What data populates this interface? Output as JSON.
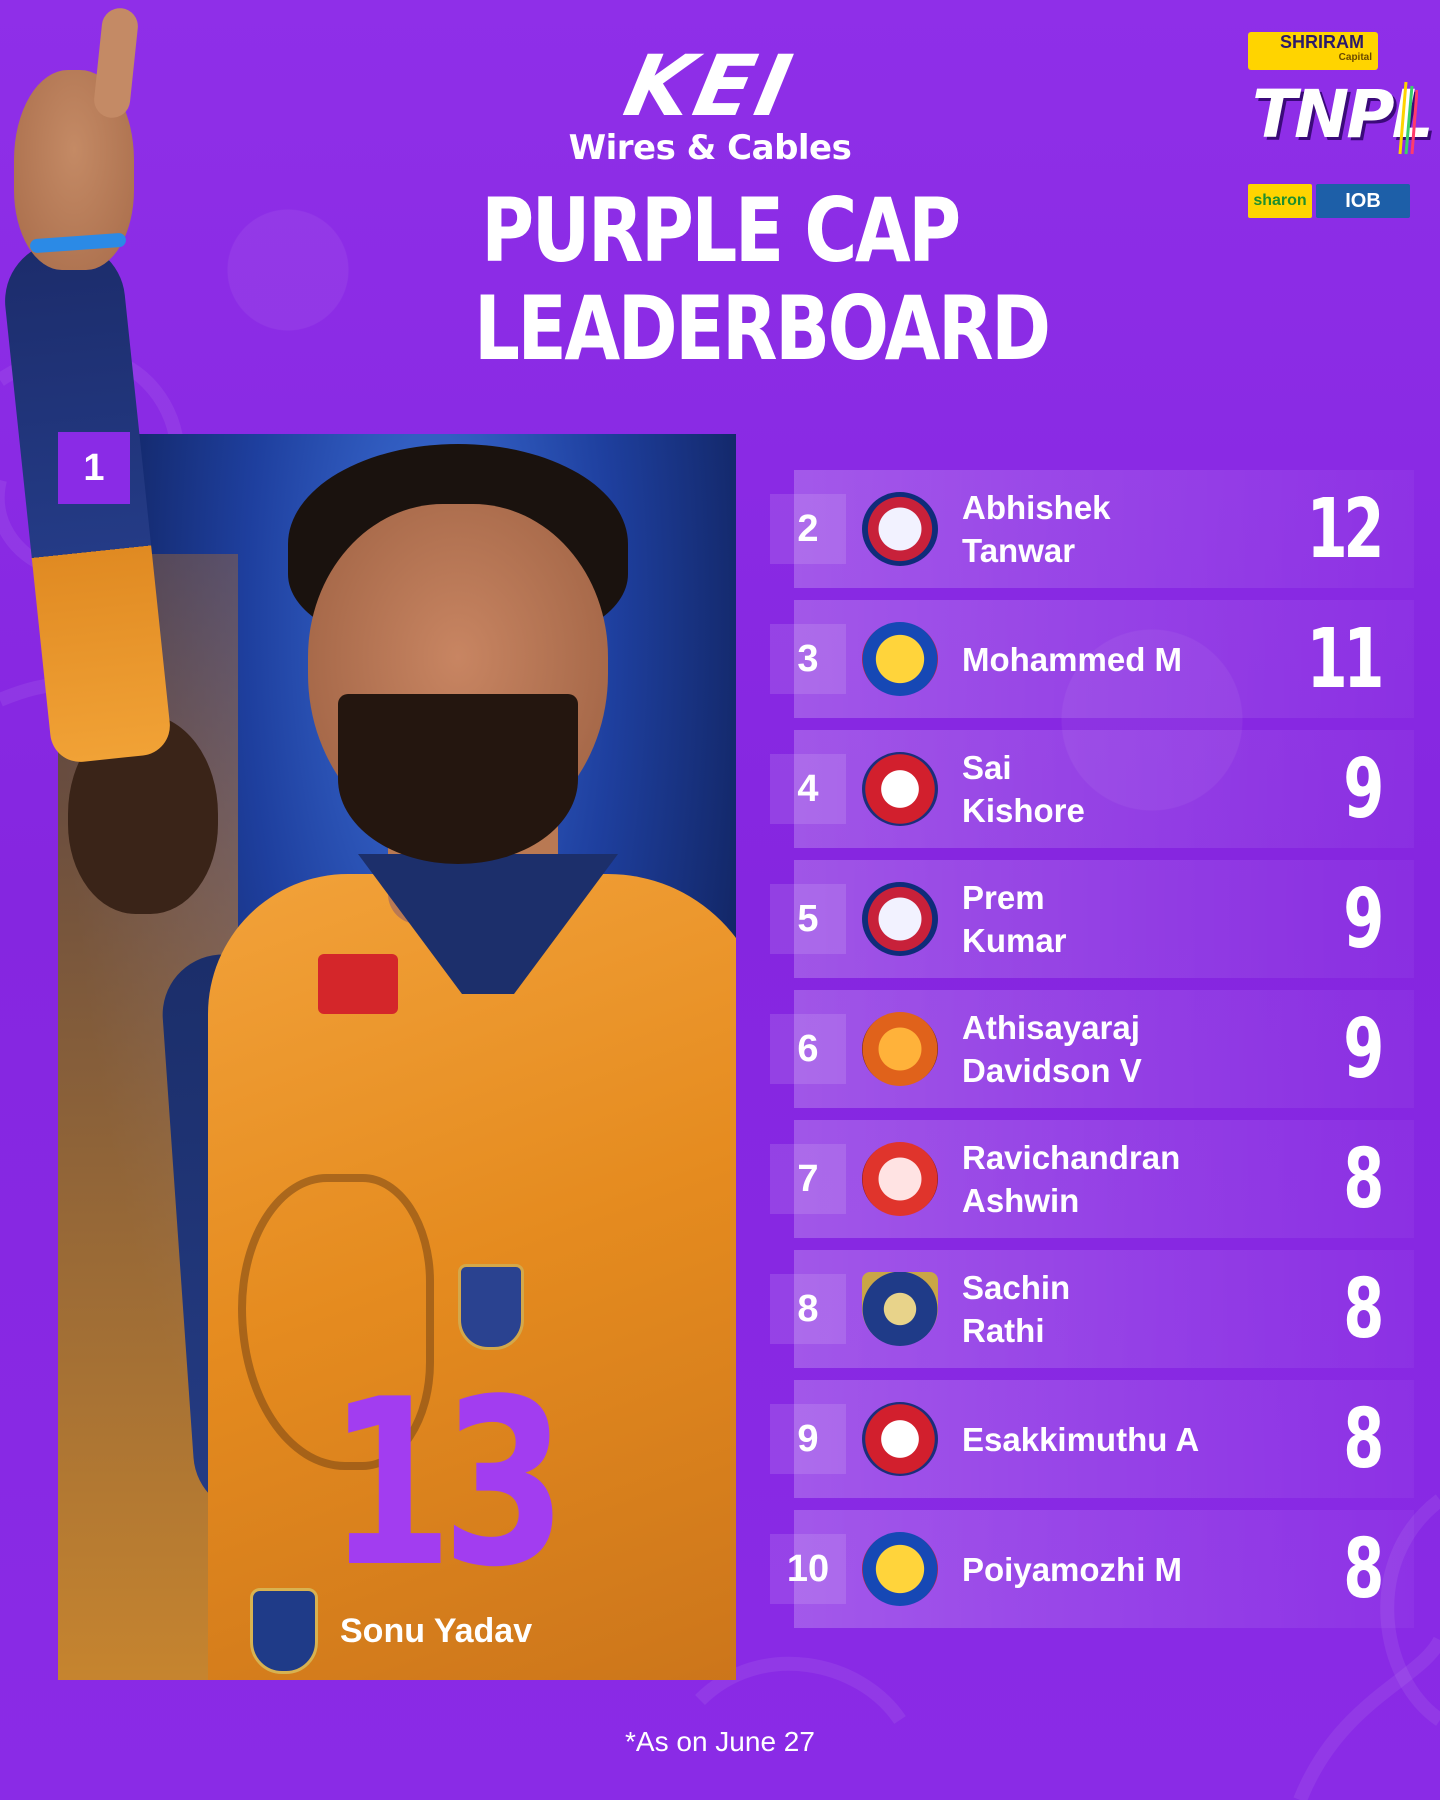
{
  "header": {
    "brand_mark": "KEI",
    "brand_sub": "Wires & Cables",
    "title_line1": "PURPLE CAP",
    "title_line2": "LEADERBOARD"
  },
  "sponsors": {
    "shriram": "SHRIRAM",
    "shriram_sub": "Capital",
    "league": "TNPL",
    "sharon": "sharon",
    "iob": "IOB"
  },
  "leader": {
    "rank": "1",
    "wickets": "13",
    "name": "Sonu Yadav"
  },
  "rows": [
    {
      "rank": "2",
      "first": "Abhishek",
      "last": "Tanwar",
      "wickets": "12",
      "team_logo": "super-gillies-logo"
    },
    {
      "rank": "3",
      "first": "Mohammed M",
      "last": "",
      "wickets": "11",
      "team_logo": "salem-spartans-logo"
    },
    {
      "rank": "4",
      "first": "Sai",
      "last": "Kishore",
      "wickets": "9",
      "team_logo": "tiruppur-tamizhans-logo"
    },
    {
      "rank": "5",
      "first": "Prem",
      "last": "Kumar",
      "wickets": "9",
      "team_logo": "super-gillies-logo"
    },
    {
      "rank": "6",
      "first": "Athisayaraj",
      "last": "Davidson V",
      "wickets": "9",
      "team_logo": "trichy-grand-cholas-logo"
    },
    {
      "rank": "7",
      "first": "Ravichandran",
      "last": "Ashwin",
      "wickets": "8",
      "team_logo": "dindigul-dragons-logo"
    },
    {
      "rank": "8",
      "first": "Sachin",
      "last": "Rathi",
      "wickets": "8",
      "team_logo": "nellai-royal-kings-logo"
    },
    {
      "rank": "9",
      "first": "Esakkimuthu A",
      "last": "",
      "wickets": "8",
      "team_logo": "tiruppur-tamizhans-logo"
    },
    {
      "rank": "10",
      "first": "Poiyamozhi M",
      "last": "",
      "wickets": "8",
      "team_logo": "salem-spartans-logo"
    }
  ],
  "footer": {
    "note": "*As on June 27"
  },
  "colors": {
    "background": "#8a2be6",
    "accent_number": "#a23df0"
  }
}
